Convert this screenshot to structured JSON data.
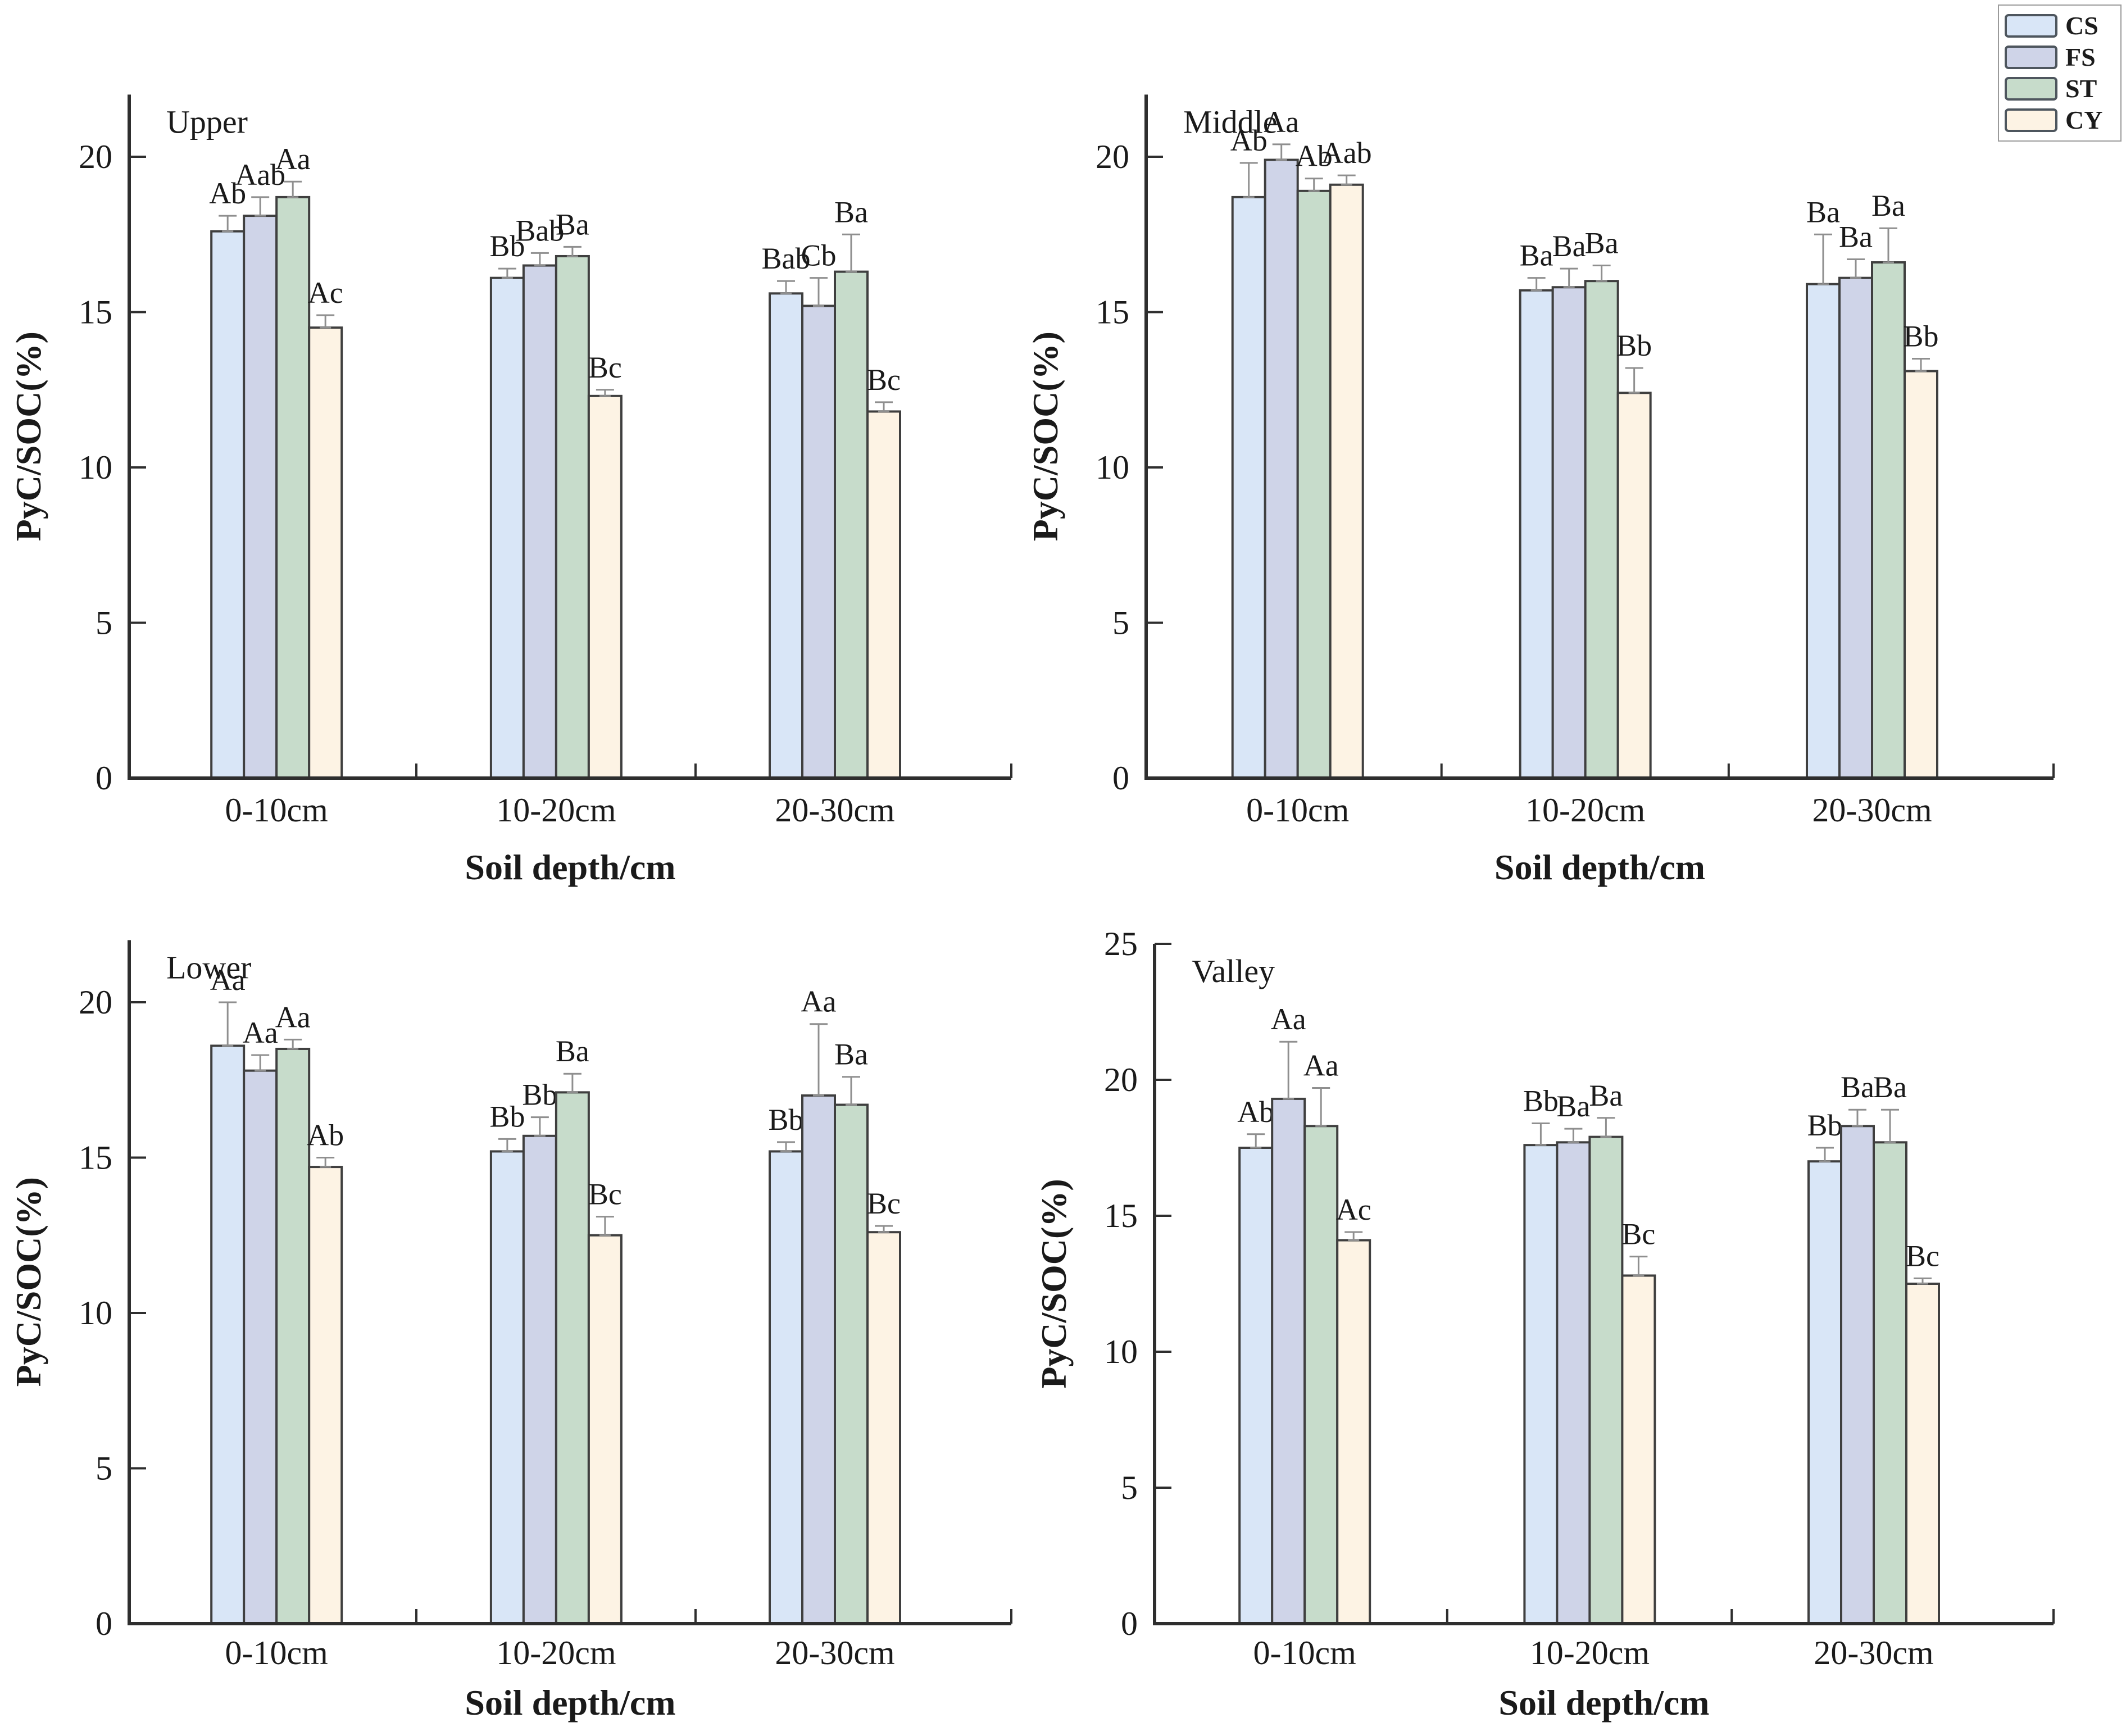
{
  "figure": {
    "y_axis_label": "PyC/SOC(%)",
    "x_axis_label": "Soil depth/cm",
    "colors": {
      "CS": "#d9e6f7",
      "FS": "#cfd4e8",
      "ST": "#c7dccb",
      "CY": "#fdf3e4",
      "bar_stroke": "#3f3f3f",
      "error_bar": "#8f8f8f",
      "axis": "#2e2e2e",
      "text": "#1a1a1a"
    },
    "legend": {
      "items": [
        {
          "label": "CS"
        },
        {
          "label": "FS"
        },
        {
          "label": "ST"
        },
        {
          "label": "CY"
        }
      ]
    }
  },
  "chart_data": [
    {
      "type": "bar",
      "title": "Upper",
      "categories": [
        "0-10cm",
        "10-20cm",
        "20-30cm"
      ],
      "xlabel": "Soil depth/cm",
      "ylabel": "PyC/SOC(%)",
      "ylim": [
        0,
        22
      ],
      "yticks": [
        0,
        5,
        10,
        15,
        20
      ],
      "grid": false,
      "series": [
        {
          "name": "CS",
          "values": [
            17.6,
            16.1,
            15.6
          ],
          "errors": [
            0.5,
            0.3,
            0.4
          ],
          "sig_labels": [
            "Ab",
            "Bb",
            "Bab"
          ]
        },
        {
          "name": "FS",
          "values": [
            18.1,
            16.5,
            15.2
          ],
          "errors": [
            0.6,
            0.4,
            0.9
          ],
          "sig_labels": [
            "Aab",
            "Bab",
            "Cb"
          ]
        },
        {
          "name": "ST",
          "values": [
            18.7,
            16.8,
            16.3
          ],
          "errors": [
            0.5,
            0.3,
            1.2
          ],
          "sig_labels": [
            "Aa",
            "Ba",
            "Ba"
          ]
        },
        {
          "name": "CY",
          "values": [
            14.5,
            12.3,
            11.8
          ],
          "errors": [
            0.4,
            0.2,
            0.3
          ],
          "sig_labels": [
            "Ac",
            "Bc",
            "Bc"
          ]
        }
      ]
    },
    {
      "type": "bar",
      "title": "Middle",
      "categories": [
        "0-10cm",
        "10-20cm",
        "20-30cm"
      ],
      "xlabel": "Soil depth/cm",
      "ylabel": "PyC/SOC(%)",
      "ylim": [
        0,
        22
      ],
      "yticks": [
        0,
        5,
        10,
        15,
        20
      ],
      "grid": false,
      "series": [
        {
          "name": "CS",
          "values": [
            18.7,
            15.7,
            15.9
          ],
          "errors": [
            1.1,
            0.4,
            1.6
          ],
          "sig_labels": [
            "Ab",
            "Ba",
            "Ba"
          ]
        },
        {
          "name": "FS",
          "values": [
            19.9,
            15.8,
            16.1
          ],
          "errors": [
            0.5,
            0.6,
            0.6
          ],
          "sig_labels": [
            "Aa",
            "Ba",
            "Ba"
          ]
        },
        {
          "name": "ST",
          "values": [
            18.9,
            16.0,
            16.6
          ],
          "errors": [
            0.4,
            0.5,
            1.1
          ],
          "sig_labels": [
            "Ab",
            "Ba",
            "Ba"
          ]
        },
        {
          "name": "CY",
          "values": [
            19.1,
            12.4,
            13.1
          ],
          "errors": [
            0.3,
            0.8,
            0.4
          ],
          "sig_labels": [
            "Aab",
            "Bb",
            "Bb"
          ]
        }
      ]
    },
    {
      "type": "bar",
      "title": "Lower",
      "categories": [
        "0-10cm",
        "10-20cm",
        "20-30cm"
      ],
      "xlabel": "Soil depth/cm",
      "ylabel": "PyC/SOC(%)",
      "ylim": [
        0,
        22
      ],
      "yticks": [
        0,
        5,
        10,
        15,
        20
      ],
      "grid": false,
      "series": [
        {
          "name": "CS",
          "values": [
            18.6,
            15.2,
            15.2
          ],
          "errors": [
            1.4,
            0.4,
            0.3
          ],
          "sig_labels": [
            "Aa",
            "Bb",
            "Bb"
          ]
        },
        {
          "name": "FS",
          "values": [
            17.8,
            15.7,
            17.0
          ],
          "errors": [
            0.5,
            0.6,
            2.3
          ],
          "sig_labels": [
            "Aa",
            "Bb",
            "Aa"
          ]
        },
        {
          "name": "ST",
          "values": [
            18.5,
            17.1,
            16.7
          ],
          "errors": [
            0.3,
            0.6,
            0.9
          ],
          "sig_labels": [
            "Aa",
            "Ba",
            "Ba"
          ]
        },
        {
          "name": "CY",
          "values": [
            14.7,
            12.5,
            12.6
          ],
          "errors": [
            0.3,
            0.6,
            0.2
          ],
          "sig_labels": [
            "Ab",
            "Bc",
            "Bc"
          ]
        }
      ]
    },
    {
      "type": "bar",
      "title": "Valley",
      "categories": [
        "0-10cm",
        "10-20cm",
        "20-30cm"
      ],
      "xlabel": "Soil depth/cm",
      "ylabel": "PyC/SOC(%)",
      "ylim": [
        0,
        25
      ],
      "yticks": [
        0,
        5,
        10,
        15,
        20,
        25
      ],
      "grid": false,
      "series": [
        {
          "name": "CS",
          "values": [
            17.5,
            17.6,
            17.0
          ],
          "errors": [
            0.5,
            0.8,
            0.5
          ],
          "sig_labels": [
            "Ab",
            "Bb",
            "Bb"
          ]
        },
        {
          "name": "FS",
          "values": [
            19.3,
            17.7,
            18.3
          ],
          "errors": [
            2.1,
            0.5,
            0.6
          ],
          "sig_labels": [
            "Aa",
            "Ba",
            "Ba"
          ]
        },
        {
          "name": "ST",
          "values": [
            18.3,
            17.9,
            17.7
          ],
          "errors": [
            1.4,
            0.7,
            1.2
          ],
          "sig_labels": [
            "Aa",
            "Ba",
            "Ba"
          ]
        },
        {
          "name": "CY",
          "values": [
            14.1,
            12.8,
            12.5
          ],
          "errors": [
            0.3,
            0.7,
            0.2
          ],
          "sig_labels": [
            "Ac",
            "Bc",
            "Bc"
          ]
        }
      ]
    }
  ]
}
